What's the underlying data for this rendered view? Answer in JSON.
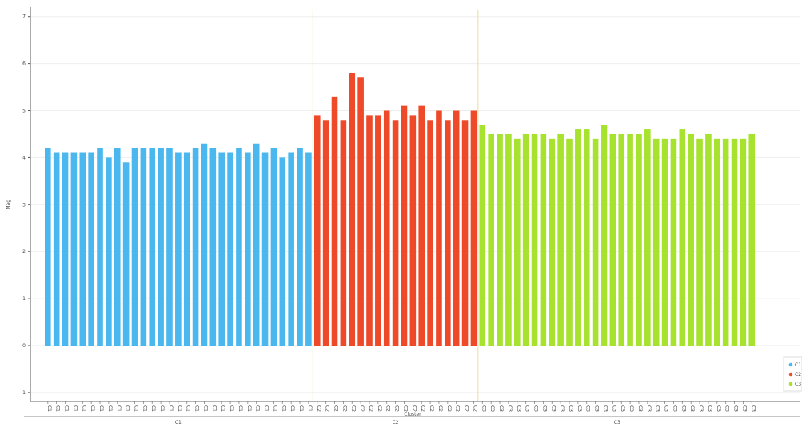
{
  "chart_data": {
    "type": "bar",
    "ylabel": "Mag",
    "xlabel": "Cluster",
    "ylim": [
      -1.2,
      7.2
    ],
    "yticks": [
      "-1",
      "0",
      "1",
      "2",
      "3",
      "4",
      "5",
      "6",
      "7"
    ],
    "grid": "horizontal",
    "legend_position": "bottom-right",
    "groups": [
      "C1",
      "C2",
      "C3"
    ],
    "series": [
      {
        "name": "C1",
        "color": "#4ab8ee",
        "values": [
          4.2,
          4.1,
          4.1,
          4.1,
          4.1,
          4.1,
          4.2,
          4.0,
          4.2,
          3.9,
          4.2,
          4.2,
          4.2,
          4.2,
          4.2,
          4.1,
          4.1,
          4.2,
          4.3,
          4.2,
          4.1,
          4.1,
          4.2,
          4.1,
          4.3,
          4.1,
          4.2,
          4.0,
          4.1,
          4.2,
          4.1
        ]
      },
      {
        "name": "C2",
        "color": "#ee4a2a",
        "values": [
          4.9,
          4.8,
          5.3,
          4.8,
          5.8,
          5.7,
          4.9,
          4.9,
          5.0,
          4.8,
          5.1,
          4.9,
          5.1,
          4.8,
          5.0,
          4.8,
          5.0,
          4.8,
          5.0
        ]
      },
      {
        "name": "C3",
        "color": "#a6e22e",
        "values": [
          4.7,
          4.5,
          4.5,
          4.5,
          4.4,
          4.5,
          4.5,
          4.5,
          4.4,
          4.5,
          4.4,
          4.6,
          4.6,
          4.4,
          4.7,
          4.5,
          4.5,
          4.5,
          4.5,
          4.6,
          4.4,
          4.4,
          4.4,
          4.6,
          4.5,
          4.4,
          4.5,
          4.4,
          4.4,
          4.4,
          4.4,
          4.5
        ]
      }
    ]
  }
}
